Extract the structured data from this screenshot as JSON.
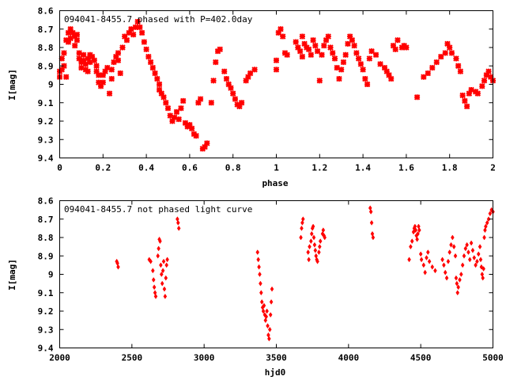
{
  "chart_data": [
    {
      "type": "scatter",
      "title": "094041-8455.7 phased with P=402.0day",
      "xlabel": "phase",
      "ylabel": "I[mag]",
      "xlim": [
        0,
        2
      ],
      "ylim": [
        9.4,
        8.6
      ],
      "y_inverted": true,
      "x_ticks": [
        "0",
        "0.2",
        "0.4",
        "0.6",
        "0.8",
        "1",
        "1.2",
        "1.4",
        "1.6",
        "1.8",
        "2"
      ],
      "y_ticks": [
        "8.6",
        "8.7",
        "8.8",
        "8.9",
        "9",
        "9.1",
        "9.2",
        "9.3",
        "9.4"
      ],
      "marker": "cross",
      "color": "#ff0000",
      "points": [
        [
          0.0,
          8.93
        ],
        [
          0.0,
          8.96
        ],
        [
          0.01,
          8.86
        ],
        [
          0.01,
          8.92
        ],
        [
          0.02,
          8.83
        ],
        [
          0.02,
          8.9
        ],
        [
          0.03,
          8.76
        ],
        [
          0.03,
          8.96
        ],
        [
          0.04,
          8.72
        ],
        [
          0.04,
          8.77
        ],
        [
          0.05,
          8.7
        ],
        [
          0.05,
          8.75
        ],
        [
          0.06,
          8.72
        ],
        [
          0.07,
          8.74
        ],
        [
          0.07,
          8.79
        ],
        [
          0.08,
          8.73
        ],
        [
          0.08,
          8.76
        ],
        [
          0.09,
          8.83
        ],
        [
          0.09,
          8.86
        ],
        [
          0.1,
          8.88
        ],
        [
          0.1,
          8.91
        ],
        [
          0.11,
          8.84
        ],
        [
          0.11,
          8.87
        ],
        [
          0.12,
          8.92
        ],
        [
          0.12,
          8.89
        ],
        [
          0.13,
          8.86
        ],
        [
          0.13,
          8.93
        ],
        [
          0.14,
          8.84
        ],
        [
          0.14,
          8.88
        ],
        [
          0.15,
          8.85
        ],
        [
          0.16,
          8.87
        ],
        [
          0.17,
          8.9
        ],
        [
          0.17,
          8.93
        ],
        [
          0.18,
          8.95
        ],
        [
          0.18,
          8.99
        ],
        [
          0.19,
          9.01
        ],
        [
          0.2,
          8.95
        ],
        [
          0.2,
          8.99
        ],
        [
          0.21,
          8.93
        ],
        [
          0.22,
          8.91
        ],
        [
          0.23,
          9.05
        ],
        [
          0.24,
          8.97
        ],
        [
          0.24,
          8.92
        ],
        [
          0.25,
          8.88
        ],
        [
          0.26,
          8.85
        ],
        [
          0.27,
          8.83
        ],
        [
          0.27,
          8.87
        ],
        [
          0.28,
          8.94
        ],
        [
          0.29,
          8.8
        ],
        [
          0.3,
          8.74
        ],
        [
          0.31,
          8.76
        ],
        [
          0.32,
          8.72
        ],
        [
          0.33,
          8.7
        ],
        [
          0.34,
          8.73
        ],
        [
          0.35,
          8.69
        ],
        [
          0.36,
          8.66
        ],
        [
          0.37,
          8.69
        ],
        [
          0.38,
          8.72
        ],
        [
          0.39,
          8.77
        ],
        [
          0.4,
          8.81
        ],
        [
          0.41,
          8.85
        ],
        [
          0.42,
          8.88
        ],
        [
          0.43,
          8.91
        ],
        [
          0.44,
          8.94
        ],
        [
          0.45,
          8.97
        ],
        [
          0.46,
          9.0
        ],
        [
          0.46,
          9.03
        ],
        [
          0.47,
          9.05
        ],
        [
          0.48,
          9.07
        ],
        [
          0.49,
          9.1
        ],
        [
          0.5,
          9.13
        ],
        [
          0.51,
          9.17
        ],
        [
          0.52,
          9.2
        ],
        [
          0.53,
          9.18
        ],
        [
          0.54,
          9.15
        ],
        [
          0.55,
          9.19
        ],
        [
          0.56,
          9.13
        ],
        [
          0.57,
          9.09
        ],
        [
          0.58,
          9.21
        ],
        [
          0.59,
          9.23
        ],
        [
          0.6,
          9.22
        ],
        [
          0.61,
          9.24
        ],
        [
          0.62,
          9.27
        ],
        [
          0.63,
          9.28
        ],
        [
          0.64,
          9.1
        ],
        [
          0.65,
          9.08
        ],
        [
          0.66,
          9.35
        ],
        [
          0.67,
          9.34
        ],
        [
          0.68,
          9.32
        ],
        [
          0.7,
          9.1
        ],
        [
          0.71,
          8.98
        ],
        [
          0.72,
          8.88
        ],
        [
          0.73,
          8.82
        ],
        [
          0.74,
          8.81
        ],
        [
          0.76,
          8.93
        ],
        [
          0.77,
          8.97
        ],
        [
          0.78,
          9.0
        ],
        [
          0.79,
          9.02
        ],
        [
          0.8,
          9.05
        ],
        [
          0.81,
          9.08
        ],
        [
          0.82,
          9.11
        ],
        [
          0.83,
          9.12
        ],
        [
          0.84,
          9.1
        ],
        [
          0.86,
          8.98
        ],
        [
          0.87,
          8.96
        ],
        [
          0.88,
          8.94
        ],
        [
          0.9,
          8.92
        ],
        [
          1.0,
          8.92
        ],
        [
          1.0,
          8.87
        ],
        [
          1.01,
          8.72
        ],
        [
          1.02,
          8.7
        ],
        [
          1.03,
          8.74
        ],
        [
          1.04,
          8.83
        ],
        [
          1.05,
          8.84
        ],
        [
          1.09,
          8.77
        ],
        [
          1.1,
          8.8
        ],
        [
          1.11,
          8.82
        ],
        [
          1.12,
          8.85
        ],
        [
          1.12,
          8.74
        ],
        [
          1.13,
          8.78
        ],
        [
          1.14,
          8.8
        ],
        [
          1.15,
          8.81
        ],
        [
          1.16,
          8.84
        ],
        [
          1.17,
          8.76
        ],
        [
          1.18,
          8.79
        ],
        [
          1.19,
          8.82
        ],
        [
          1.2,
          8.98
        ],
        [
          1.21,
          8.84
        ],
        [
          1.22,
          8.79
        ],
        [
          1.23,
          8.76
        ],
        [
          1.24,
          8.74
        ],
        [
          1.25,
          8.8
        ],
        [
          1.26,
          8.83
        ],
        [
          1.27,
          8.86
        ],
        [
          1.28,
          8.91
        ],
        [
          1.29,
          8.97
        ],
        [
          1.3,
          8.92
        ],
        [
          1.31,
          8.88
        ],
        [
          1.32,
          8.84
        ],
        [
          1.33,
          8.78
        ],
        [
          1.34,
          8.74
        ],
        [
          1.35,
          8.76
        ],
        [
          1.36,
          8.79
        ],
        [
          1.37,
          8.83
        ],
        [
          1.38,
          8.86
        ],
        [
          1.39,
          8.89
        ],
        [
          1.4,
          8.92
        ],
        [
          1.41,
          8.97
        ],
        [
          1.42,
          9.0
        ],
        [
          1.43,
          8.86
        ],
        [
          1.44,
          8.82
        ],
        [
          1.46,
          8.84
        ],
        [
          1.48,
          8.89
        ],
        [
          1.5,
          8.91
        ],
        [
          1.51,
          8.93
        ],
        [
          1.52,
          8.95
        ],
        [
          1.53,
          8.97
        ],
        [
          1.54,
          8.79
        ],
        [
          1.55,
          8.81
        ],
        [
          1.56,
          8.76
        ],
        [
          1.58,
          8.8
        ],
        [
          1.59,
          8.79
        ],
        [
          1.6,
          8.8
        ],
        [
          1.65,
          9.07
        ],
        [
          1.68,
          8.96
        ],
        [
          1.7,
          8.94
        ],
        [
          1.72,
          8.91
        ],
        [
          1.74,
          8.88
        ],
        [
          1.76,
          8.85
        ],
        [
          1.78,
          8.83
        ],
        [
          1.79,
          8.78
        ],
        [
          1.8,
          8.8
        ],
        [
          1.81,
          8.83
        ],
        [
          1.83,
          8.86
        ],
        [
          1.84,
          8.9
        ],
        [
          1.85,
          8.93
        ],
        [
          1.86,
          9.06
        ],
        [
          1.87,
          9.09
        ],
        [
          1.88,
          9.12
        ],
        [
          1.89,
          9.05
        ],
        [
          1.9,
          9.03
        ],
        [
          1.92,
          9.04
        ],
        [
          1.93,
          9.05
        ],
        [
          1.95,
          9.01
        ],
        [
          1.96,
          8.98
        ],
        [
          1.97,
          8.95
        ],
        [
          1.98,
          8.93
        ],
        [
          1.99,
          8.96
        ],
        [
          2.0,
          8.98
        ]
      ]
    },
    {
      "type": "scatter",
      "title": "094041-8455.7 not phased light curve",
      "xlabel": "hjd0",
      "ylabel": "I[mag]",
      "xlim": [
        2000,
        5000
      ],
      "ylim": [
        9.4,
        8.6
      ],
      "y_inverted": true,
      "x_ticks": [
        "2000",
        "2500",
        "3000",
        "3500",
        "4000",
        "4500",
        "5000"
      ],
      "y_ticks": [
        "8.6",
        "8.7",
        "8.8",
        "8.9",
        "9",
        "9.1",
        "9.2",
        "9.3",
        "9.4"
      ],
      "marker": "diamond",
      "color": "#ff0000",
      "points": [
        [
          2395,
          8.93
        ],
        [
          2400,
          8.94
        ],
        [
          2405,
          8.96
        ],
        [
          2620,
          8.92
        ],
        [
          2630,
          8.93
        ],
        [
          2645,
          8.98
        ],
        [
          2650,
          9.03
        ],
        [
          2655,
          9.07
        ],
        [
          2660,
          9.1
        ],
        [
          2665,
          9.12
        ],
        [
          2680,
          8.9
        ],
        [
          2685,
          8.86
        ],
        [
          2690,
          8.81
        ],
        [
          2695,
          8.82
        ],
        [
          2700,
          8.95
        ],
        [
          2705,
          9.0
        ],
        [
          2710,
          9.05
        ],
        [
          2715,
          8.98
        ],
        [
          2720,
          8.93
        ],
        [
          2725,
          9.08
        ],
        [
          2730,
          9.12
        ],
        [
          2735,
          9.02
        ],
        [
          2740,
          8.95
        ],
        [
          2745,
          8.92
        ],
        [
          2815,
          8.7
        ],
        [
          2820,
          8.72
        ],
        [
          2825,
          8.75
        ],
        [
          3370,
          8.88
        ],
        [
          3375,
          8.92
        ],
        [
          3380,
          8.96
        ],
        [
          3385,
          9.0
        ],
        [
          3390,
          9.05
        ],
        [
          3395,
          9.1
        ],
        [
          3400,
          9.15
        ],
        [
          3405,
          9.18
        ],
        [
          3410,
          9.2
        ],
        [
          3415,
          9.17
        ],
        [
          3420,
          9.22
        ],
        [
          3425,
          9.25
        ],
        [
          3430,
          9.23
        ],
        [
          3435,
          9.2
        ],
        [
          3440,
          9.28
        ],
        [
          3445,
          9.33
        ],
        [
          3450,
          9.35
        ],
        [
          3455,
          9.3
        ],
        [
          3460,
          9.22
        ],
        [
          3465,
          9.15
        ],
        [
          3470,
          9.08
        ],
        [
          3670,
          8.8
        ],
        [
          3675,
          8.75
        ],
        [
          3680,
          8.72
        ],
        [
          3685,
          8.7
        ],
        [
          3720,
          8.88
        ],
        [
          3725,
          8.92
        ],
        [
          3730,
          8.85
        ],
        [
          3740,
          8.82
        ],
        [
          3745,
          8.78
        ],
        [
          3750,
          8.75
        ],
        [
          3755,
          8.74
        ],
        [
          3760,
          8.8
        ],
        [
          3765,
          8.84
        ],
        [
          3770,
          8.87
        ],
        [
          3775,
          8.9
        ],
        [
          3780,
          8.92
        ],
        [
          3785,
          8.93
        ],
        [
          3795,
          8.88
        ],
        [
          3800,
          8.85
        ],
        [
          3805,
          8.82
        ],
        [
          3820,
          8.78
        ],
        [
          3825,
          8.76
        ],
        [
          3830,
          8.79
        ],
        [
          3835,
          8.8
        ],
        [
          4150,
          8.64
        ],
        [
          4155,
          8.66
        ],
        [
          4160,
          8.72
        ],
        [
          4165,
          8.78
        ],
        [
          4170,
          8.8
        ],
        [
          4420,
          8.92
        ],
        [
          4430,
          8.85
        ],
        [
          4440,
          8.82
        ],
        [
          4450,
          8.77
        ],
        [
          4455,
          8.75
        ],
        [
          4460,
          8.74
        ],
        [
          4465,
          8.76
        ],
        [
          4470,
          8.79
        ],
        [
          4475,
          8.81
        ],
        [
          4480,
          8.78
        ],
        [
          4485,
          8.74
        ],
        [
          4490,
          8.76
        ],
        [
          4500,
          8.89
        ],
        [
          4505,
          8.92
        ],
        [
          4520,
          8.95
        ],
        [
          4530,
          8.99
        ],
        [
          4540,
          8.91
        ],
        [
          4550,
          8.88
        ],
        [
          4560,
          8.93
        ],
        [
          4580,
          8.96
        ],
        [
          4600,
          8.98
        ],
        [
          4650,
          8.92
        ],
        [
          4660,
          8.95
        ],
        [
          4670,
          8.99
        ],
        [
          4680,
          9.02
        ],
        [
          4690,
          8.93
        ],
        [
          4700,
          8.88
        ],
        [
          4710,
          8.84
        ],
        [
          4720,
          8.8
        ],
        [
          4730,
          8.85
        ],
        [
          4740,
          8.9
        ],
        [
          4745,
          9.02
        ],
        [
          4750,
          9.05
        ],
        [
          4755,
          9.1
        ],
        [
          4760,
          9.07
        ],
        [
          4770,
          9.03
        ],
        [
          4780,
          9.0
        ],
        [
          4790,
          8.95
        ],
        [
          4800,
          8.9
        ],
        [
          4810,
          8.86
        ],
        [
          4820,
          8.84
        ],
        [
          4830,
          8.88
        ],
        [
          4840,
          8.92
        ],
        [
          4850,
          8.83
        ],
        [
          4860,
          8.87
        ],
        [
          4870,
          8.91
        ],
        [
          4880,
          8.95
        ],
        [
          4890,
          8.93
        ],
        [
          4900,
          8.89
        ],
        [
          4910,
          8.85
        ],
        [
          4915,
          8.92
        ],
        [
          4920,
          8.96
        ],
        [
          4925,
          9.0
        ],
        [
          4930,
          9.02
        ],
        [
          4935,
          8.97
        ],
        [
          4940,
          8.8
        ],
        [
          4945,
          8.76
        ],
        [
          4950,
          8.74
        ],
        [
          4960,
          8.72
        ],
        [
          4970,
          8.7
        ],
        [
          4980,
          8.67
        ],
        [
          4990,
          8.65
        ],
        [
          5000,
          8.66
        ]
      ]
    }
  ]
}
